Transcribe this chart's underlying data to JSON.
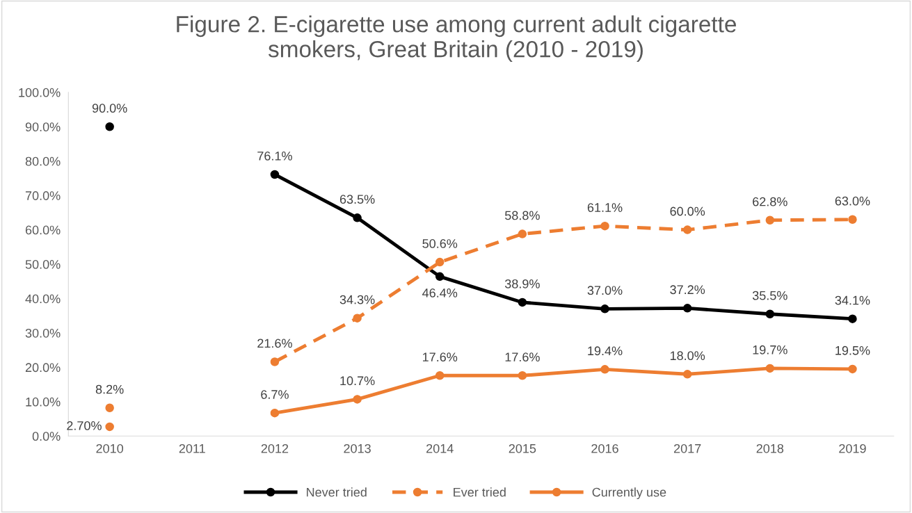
{
  "chart_data": {
    "type": "line",
    "title": "Figure 2. E-cigarette use among current adult cigarette\nsmokers, Great Britain (2010 - 2019)",
    "categories": [
      "2010",
      "2011",
      "2012",
      "2013",
      "2014",
      "2015",
      "2016",
      "2017",
      "2018",
      "2019"
    ],
    "series": [
      {
        "name": "Never tried",
        "color": "#000000",
        "line_style": "solid",
        "values": [
          90.0,
          null,
          76.1,
          63.5,
          46.4,
          38.9,
          37.0,
          37.2,
          35.5,
          34.1
        ],
        "value_labels": [
          "90.0%",
          null,
          "76.1%",
          "63.5%",
          "46.4%",
          "38.9%",
          "37.0%",
          "37.2%",
          "35.5%",
          "34.1%"
        ]
      },
      {
        "name": "Ever tried",
        "color": "#ed7d31",
        "line_style": "dashed",
        "values": [
          8.2,
          null,
          21.6,
          34.3,
          50.6,
          58.8,
          61.1,
          60.0,
          62.8,
          63.0
        ],
        "value_labels": [
          "8.2%",
          null,
          "21.6%",
          "34.3%",
          "50.6%",
          "58.8%",
          "61.1%",
          "60.0%",
          "62.8%",
          "63.0%"
        ]
      },
      {
        "name": "Currently use",
        "color": "#ed7d31",
        "line_style": "solid",
        "values": [
          2.7,
          null,
          6.7,
          10.7,
          17.6,
          17.6,
          19.4,
          18.0,
          19.7,
          19.5
        ],
        "value_labels": [
          "2.70%",
          null,
          "6.7%",
          "10.7%",
          "17.6%",
          "17.6%",
          "19.4%",
          "18.0%",
          "19.7%",
          "19.5%"
        ]
      }
    ],
    "ylim": [
      0,
      100
    ],
    "yticks": [
      {
        "value": 0,
        "label": "0.0%"
      },
      {
        "value": 10,
        "label": "10.0%"
      },
      {
        "value": 20,
        "label": "20.0%"
      },
      {
        "value": 30,
        "label": "30.0%"
      },
      {
        "value": 40,
        "label": "40.0%"
      },
      {
        "value": 50,
        "label": "50.0%"
      },
      {
        "value": 60,
        "label": "60.0%"
      },
      {
        "value": 70,
        "label": "70.0%"
      },
      {
        "value": 80,
        "label": "80.0%"
      },
      {
        "value": 90,
        "label": "90.0%"
      },
      {
        "value": 100,
        "label": "100.0%"
      }
    ],
    "marker": "circle",
    "legend": "bottom",
    "grid": false
  }
}
